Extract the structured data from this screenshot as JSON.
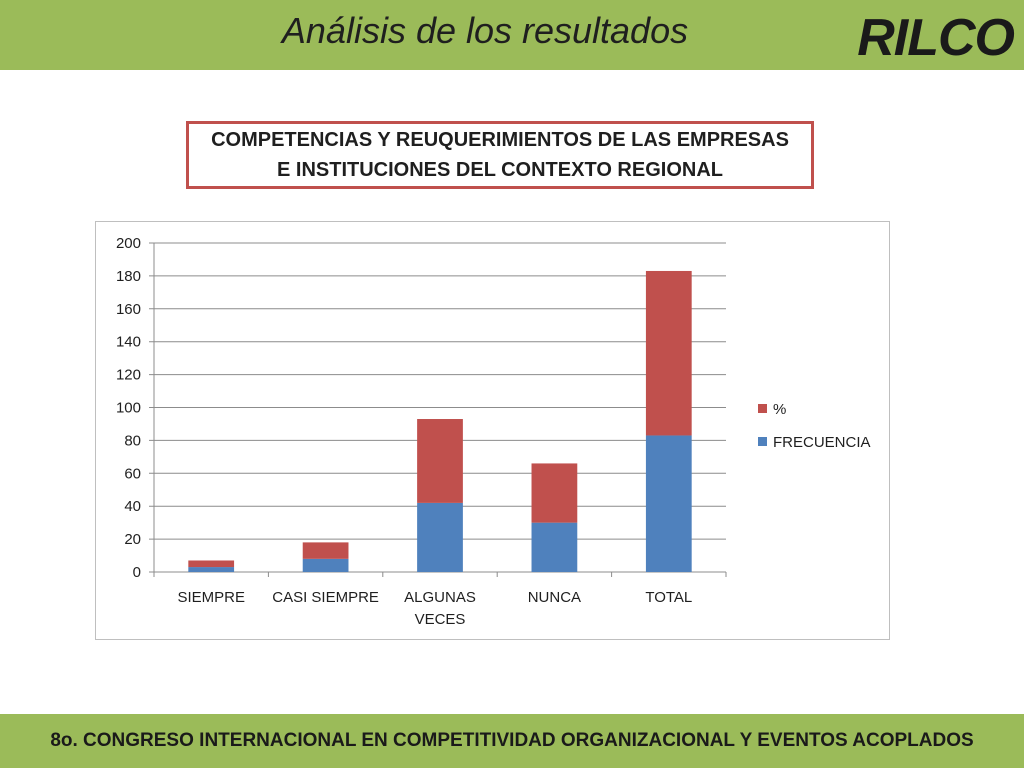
{
  "header": {
    "title": "Análisis de los resultados",
    "logo": "RILCO"
  },
  "subtitle": {
    "line1": "COMPETENCIAS Y REUQUERIMIENTOS DE LAS EMPRESAS",
    "line2": "E INSTITUCIONES DEL CONTEXTO REGIONAL"
  },
  "footer": {
    "text": "8o. CONGRESO INTERNACIONAL EN COMPETITIVIDAD ORGANIZACIONAL Y EVENTOS ACOPLADOS"
  },
  "colors": {
    "band": "#9bbb59",
    "frecuencia": "#4f81bd",
    "percent": "#c0504d"
  },
  "chart_data": {
    "type": "bar",
    "stacked": true,
    "categories": [
      "SIEMPRE",
      "CASI SIEMPRE",
      "ALGUNAS VECES",
      "NUNCA",
      "TOTAL"
    ],
    "category_lines": [
      [
        "SIEMPRE"
      ],
      [
        "CASI SIEMPRE"
      ],
      [
        "ALGUNAS",
        "VECES"
      ],
      [
        "NUNCA"
      ],
      [
        "TOTAL"
      ]
    ],
    "series": [
      {
        "name": "FRECUENCIA",
        "color": "#4f81bd",
        "values": [
          3,
          8,
          42,
          30,
          83
        ]
      },
      {
        "name": "%",
        "color": "#c0504d",
        "values": [
          4,
          10,
          51,
          36,
          100
        ]
      }
    ],
    "ylim": [
      0,
      200
    ],
    "yticks": [
      0,
      20,
      40,
      60,
      80,
      100,
      120,
      140,
      160,
      180,
      200
    ],
    "grid": true,
    "legend": "right",
    "title": "",
    "xlabel": "",
    "ylabel": ""
  }
}
